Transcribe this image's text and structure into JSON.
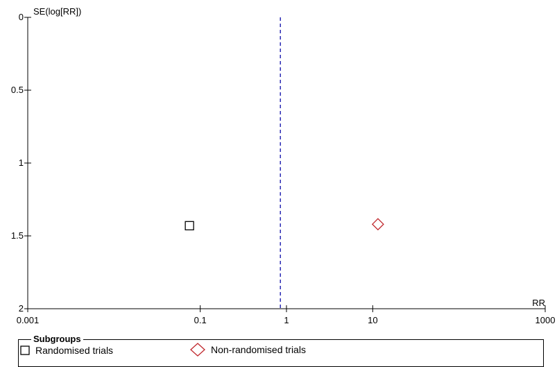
{
  "chart_data": {
    "type": "scatter",
    "subtype": "funnel plot",
    "ylabel": "SE(log[RR])",
    "xlabel": "RR",
    "x_scale": "log",
    "xlim": [
      0.001,
      1000
    ],
    "ylim": [
      0,
      2
    ],
    "y_inverted": true,
    "x_ticks": [
      "0.001",
      "0.1",
      "1",
      "10",
      "1000"
    ],
    "x_tick_values": [
      0.001,
      0.1,
      1,
      10,
      1000
    ],
    "y_ticks": [
      "0",
      "0.5",
      "1",
      "1.5",
      "2"
    ],
    "y_tick_values": [
      0,
      0.5,
      1,
      1.5,
      2
    ],
    "reference_line": {
      "x": 0.85,
      "style": "dashed",
      "color": "#2b2bb5"
    },
    "series": [
      {
        "name": "Randomised trials",
        "marker": "square",
        "color": "#000000",
        "points": [
          {
            "x": 0.075,
            "y": 1.43
          }
        ]
      },
      {
        "name": "Non-randomised trials",
        "marker": "diamond",
        "color": "#c0282d",
        "points": [
          {
            "x": 11.5,
            "y": 1.42
          }
        ]
      }
    ],
    "legend": {
      "title": "Subgroups",
      "position": "bottom"
    }
  }
}
